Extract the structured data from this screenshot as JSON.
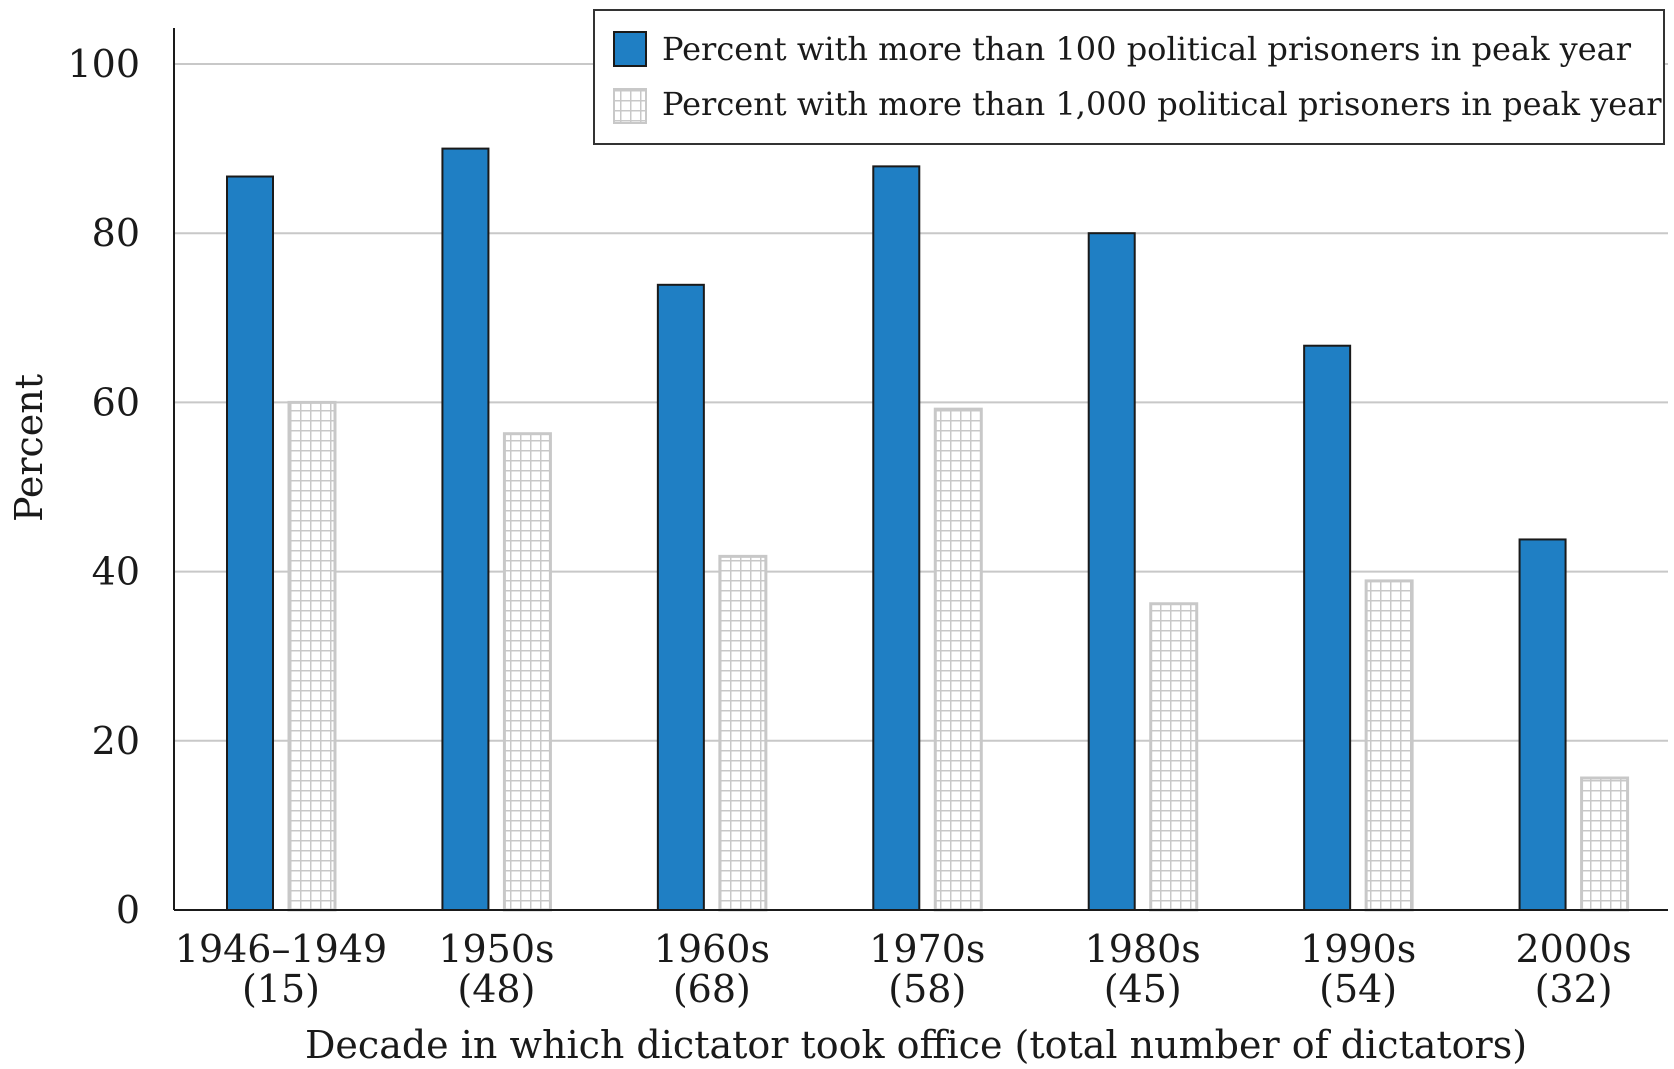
{
  "chart_data": {
    "type": "bar",
    "xlabel": "Decade in which dictator took office (total number of dictators)",
    "ylabel": "Percent",
    "ylim": [
      0,
      100
    ],
    "yticks": [
      0,
      20,
      40,
      60,
      80,
      100
    ],
    "grid": "horizontal",
    "legend_position": "top-right",
    "categories": [
      {
        "label": "1946–1949",
        "count": "(15)"
      },
      {
        "label": "1950s",
        "count": "(48)"
      },
      {
        "label": "1960s",
        "count": "(68)"
      },
      {
        "label": "1970s",
        "count": "(58)"
      },
      {
        "label": "1980s",
        "count": "(45)"
      },
      {
        "label": "1990s",
        "count": "(54)"
      },
      {
        "label": "2000s",
        "count": "(32)"
      }
    ],
    "series": [
      {
        "name": "Percent with more than 100 political prisoners in peak year",
        "color": "#1f7fc4",
        "pattern": "solid",
        "values": [
          86.7,
          90.0,
          73.9,
          87.9,
          80.0,
          66.7,
          43.8
        ]
      },
      {
        "name": "Percent with more than 1,000 political prisoners in peak year",
        "color": "#c8c8c8",
        "pattern": "grid",
        "values": [
          60.0,
          56.3,
          41.8,
          59.2,
          36.2,
          38.9,
          15.6
        ]
      }
    ]
  }
}
